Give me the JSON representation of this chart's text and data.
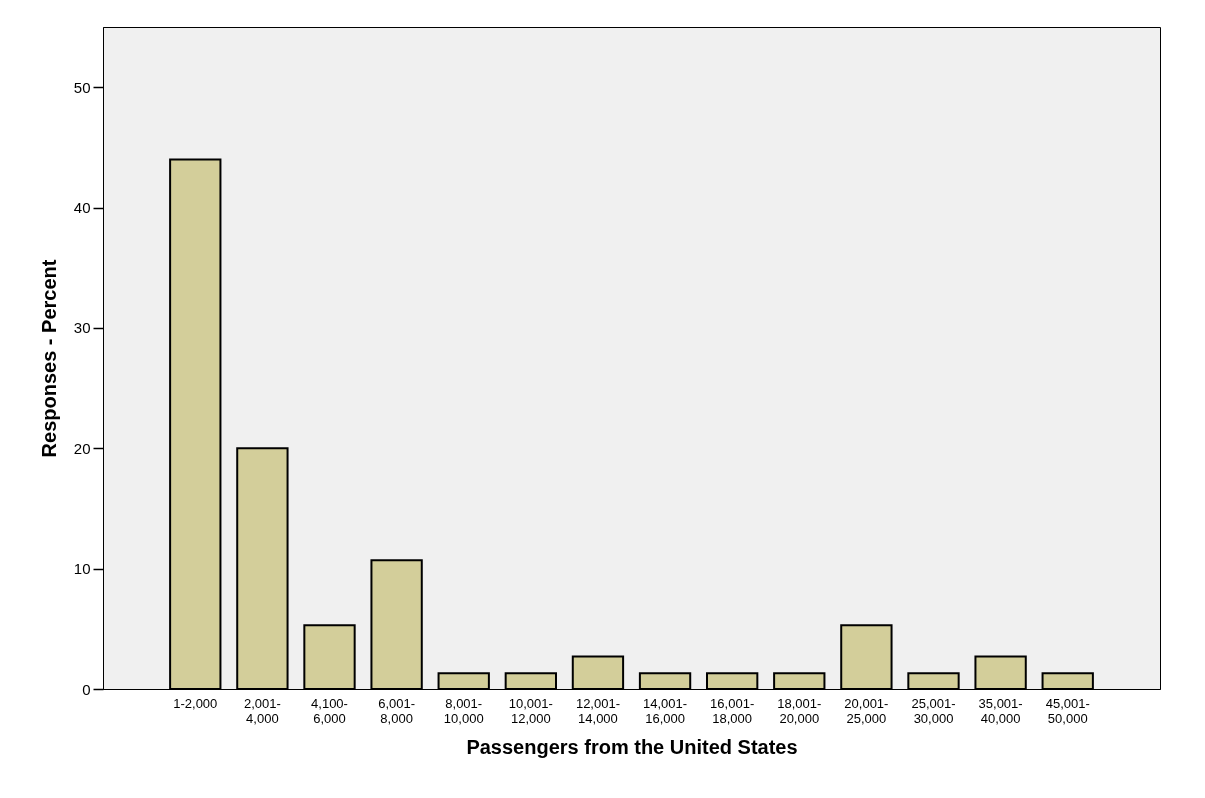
{
  "chart_data": {
    "type": "bar",
    "xlabel": "Passengers from the United States",
    "ylabel": "Responses - Percent",
    "categories": [
      "1-2,000",
      "2,001-\n4,000",
      "4,100-\n6,000",
      "6,001-\n8,000",
      "8,001-\n10,000",
      "10,001-\n12,000",
      "12,001-\n14,000",
      "14,001-\n16,000",
      "16,001-\n18,000",
      "18,001-\n20,000",
      "20,001-\n25,000",
      "25,001-\n30,000",
      "35,001-\n40,000",
      "45,001-\n50,000"
    ],
    "values": [
      44,
      20,
      5.3,
      10.7,
      1.3,
      1.3,
      2.7,
      1.3,
      1.3,
      1.3,
      5.3,
      1.3,
      2.7,
      1.3
    ],
    "color": "#d3ce9a",
    "ylim": [
      0,
      55
    ],
    "yticks": [
      0,
      10,
      20,
      30,
      40,
      50
    ],
    "grid": false
  }
}
